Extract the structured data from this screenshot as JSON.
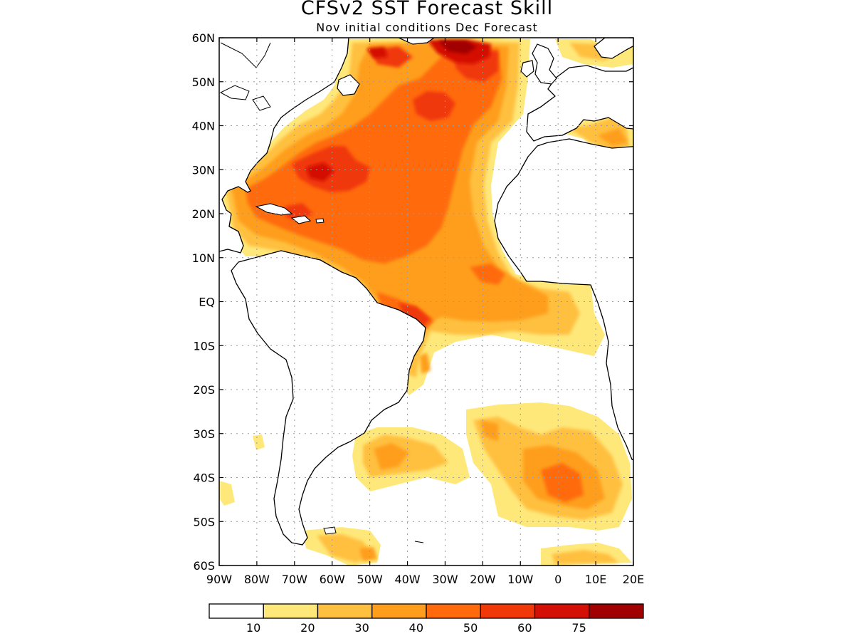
{
  "header": {
    "title": "CFSv2 SST Forecast Skill",
    "subtitle": "Nov initial conditions  Dec Forecast"
  },
  "map": {
    "region": "Atlantic Ocean",
    "lon_range": [
      -90,
      20
    ],
    "lat_range": [
      -60,
      60
    ],
    "lat_labels": [
      "60N",
      "50N",
      "40N",
      "30N",
      "20N",
      "10N",
      "EQ",
      "10S",
      "20S",
      "30S",
      "40S",
      "50S",
      "60S"
    ],
    "lon_labels": [
      "90W",
      "80W",
      "70W",
      "60W",
      "50W",
      "40W",
      "30W",
      "20W",
      "10W",
      "0",
      "10E",
      "20E"
    ]
  },
  "legend": {
    "colors": [
      "#ffffff",
      "#ffe87a",
      "#ffc040",
      "#ff9e1c",
      "#ff6a0c",
      "#f03808",
      "#d41006",
      "#a00000"
    ],
    "labels": [
      "10",
      "20",
      "30",
      "40",
      "50",
      "60",
      "75"
    ]
  }
}
